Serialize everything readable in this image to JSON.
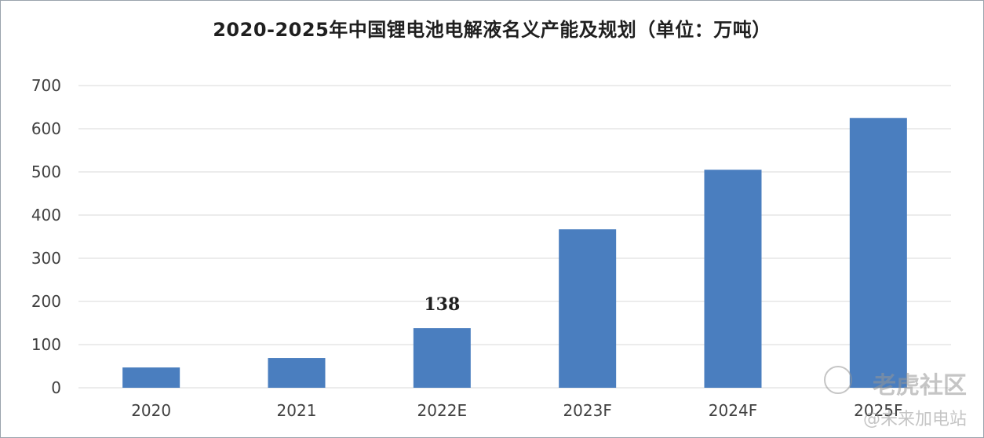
{
  "chart_data": {
    "type": "bar",
    "title": "2020-2025年中国锂电池电解液名义产能及规划（单位：万吨）",
    "categories": [
      "2020",
      "2021",
      "2022E",
      "2023F",
      "2024F",
      "2025F"
    ],
    "values": [
      47,
      69,
      138,
      367,
      505,
      625
    ],
    "data_labels": [
      {
        "index": 2,
        "text": "138"
      }
    ],
    "yticks": [
      "0",
      "100",
      "200",
      "300",
      "400",
      "500",
      "600",
      "700"
    ],
    "ylim": [
      0,
      700
    ],
    "xlabel": "",
    "ylabel": "",
    "grid": true,
    "legend": "none",
    "bar_color": "#4a7ebf",
    "grid_color": "#d9d9d9"
  },
  "watermark": {
    "line1": "老虎社区",
    "line2": "@未来加电站"
  }
}
